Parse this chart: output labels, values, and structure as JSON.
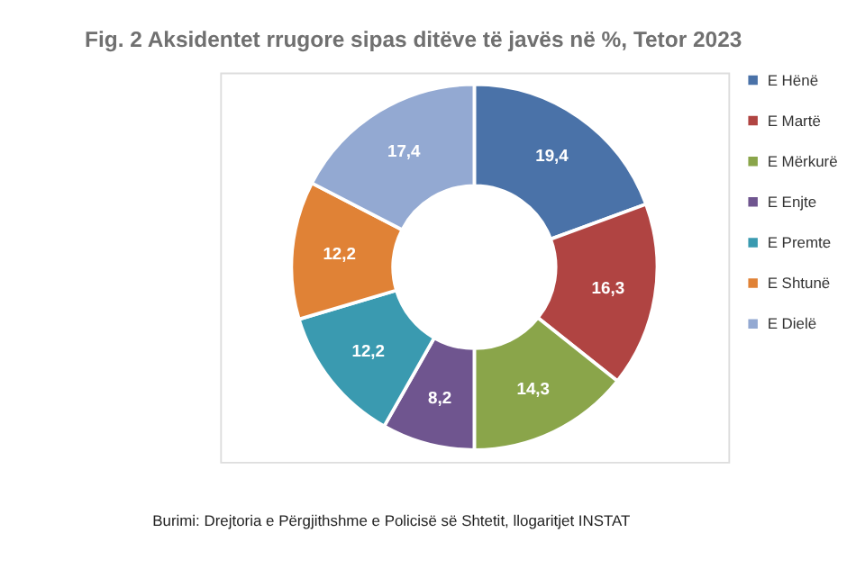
{
  "chart_data": {
    "type": "donut",
    "title": "Fig. 2 Aksidentet rrugore sipas ditëve të javës në %, Tetor 2023",
    "categories": [
      "E Hënë",
      "E Martë",
      "E Mërkurë",
      "E Enjte",
      "E Premte",
      "E Shtunë",
      "E Dielë"
    ],
    "values": [
      19.4,
      16.3,
      14.3,
      8.2,
      12.2,
      12.2,
      17.4
    ],
    "value_labels": [
      "19,4",
      "16,3",
      "14,3",
      "8,2",
      "12,2",
      "12,2",
      "17,4"
    ],
    "colors": [
      "#4a72a8",
      "#b04442",
      "#8aa54a",
      "#6f558f",
      "#3a9ab0",
      "#e08236",
      "#93a9d2"
    ],
    "legend": "right",
    "annotations": [
      "Burimi: Drejtoria e Përgjithshme e Policisë së Shtetit, llogaritjet INSTAT"
    ]
  }
}
